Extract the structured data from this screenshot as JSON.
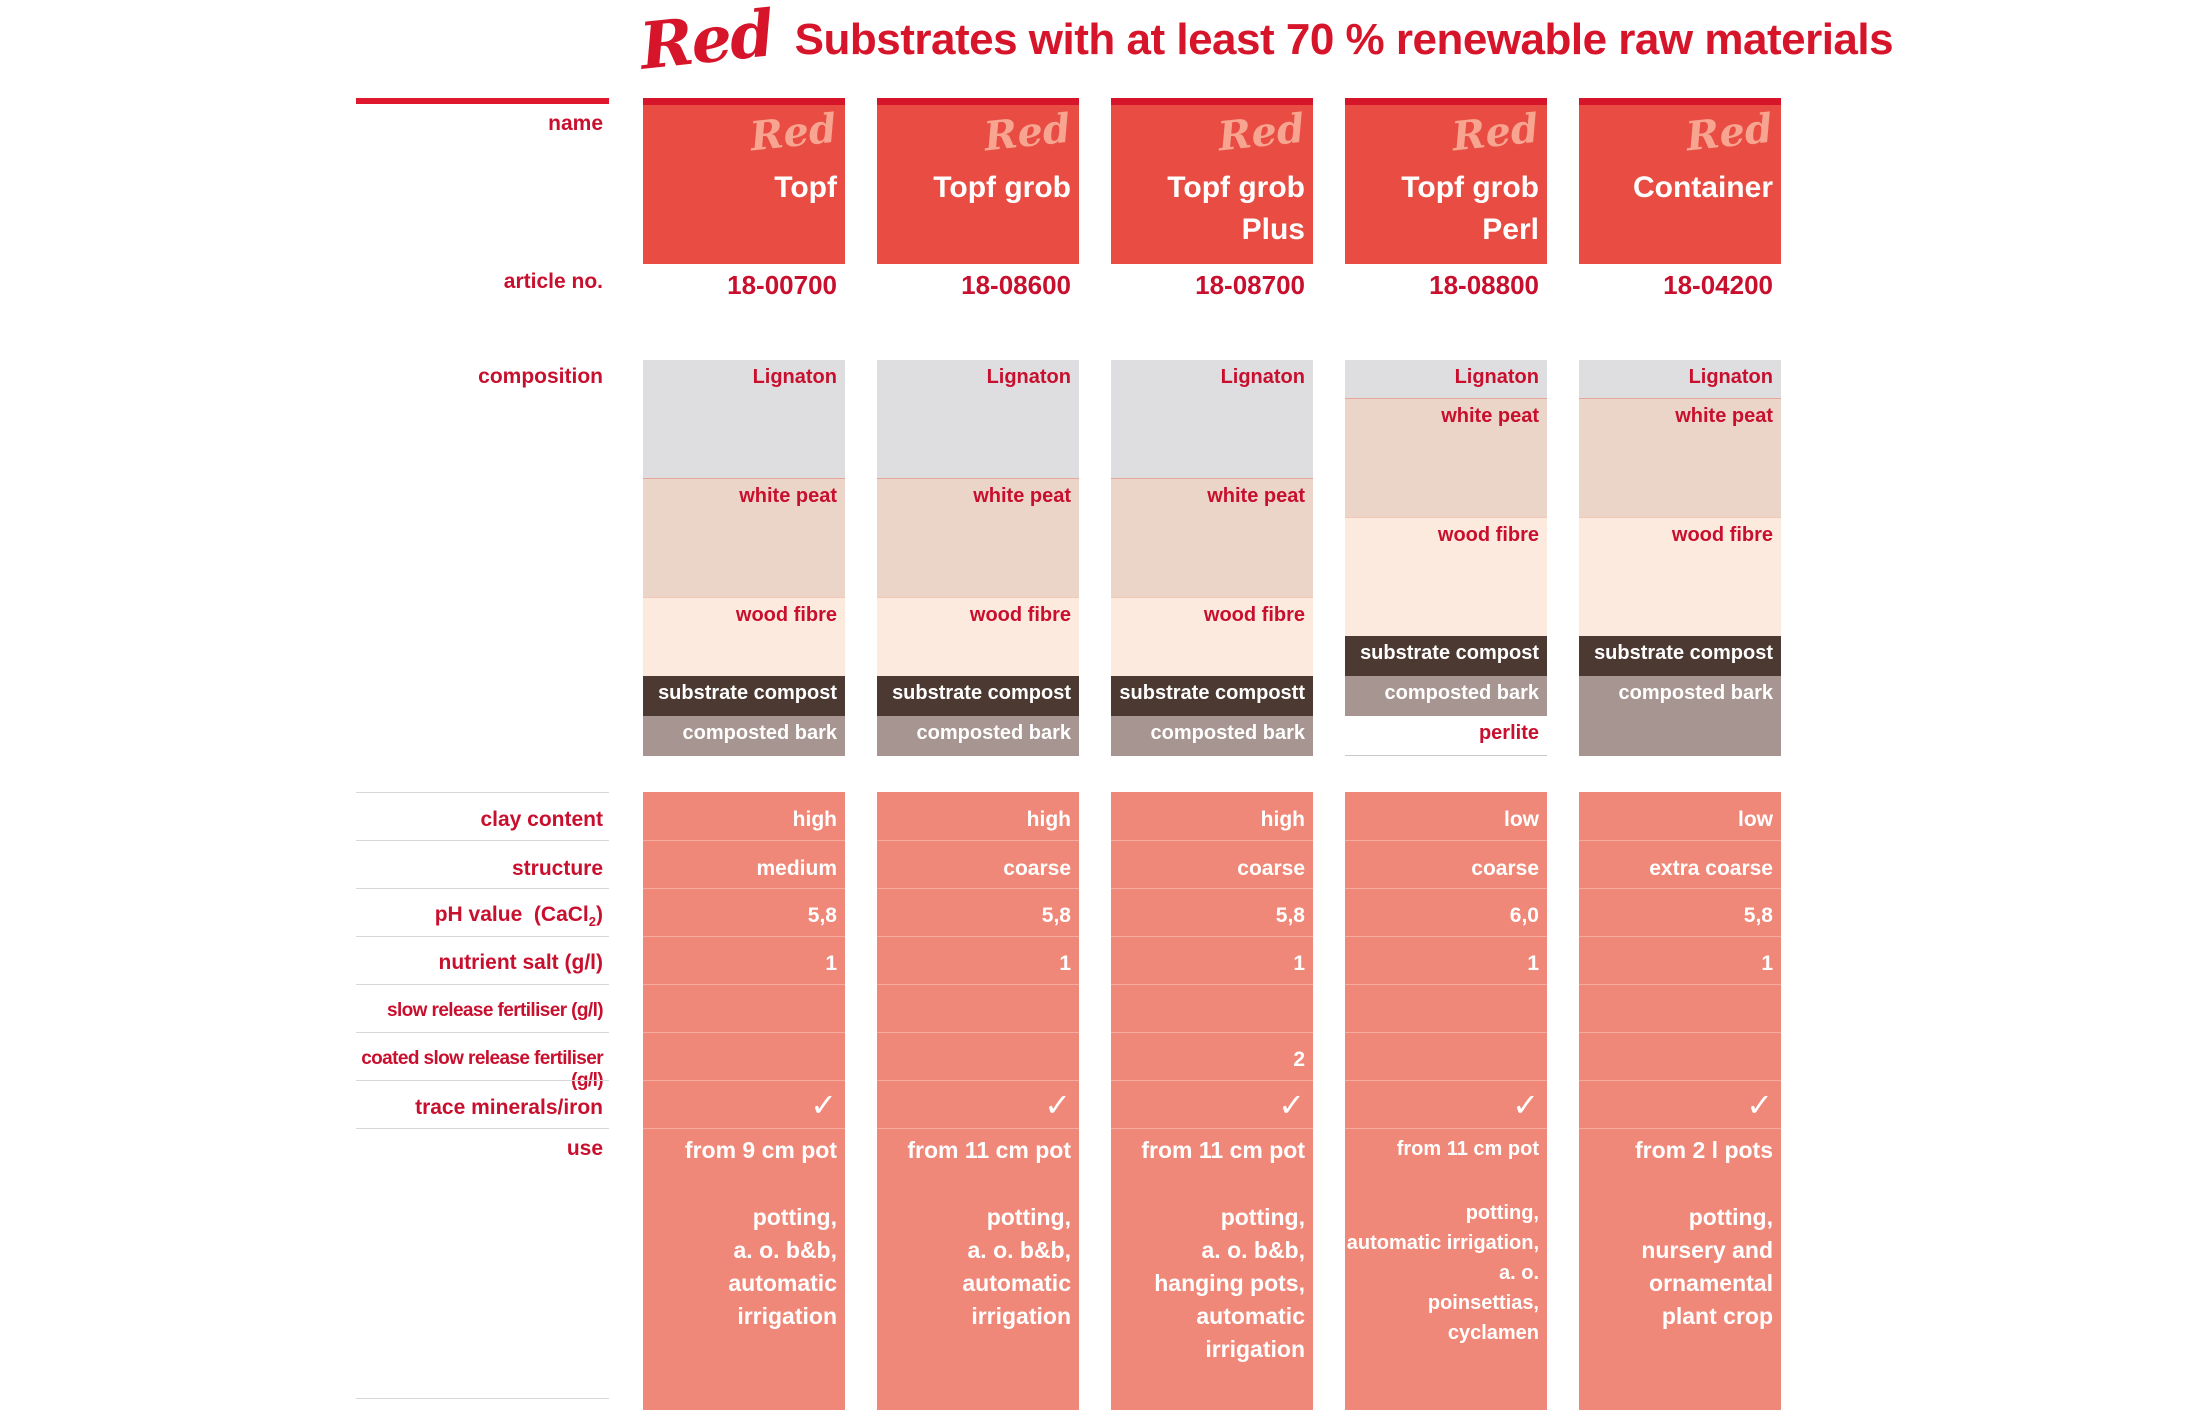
{
  "title": {
    "brand": "Red",
    "text": "Substrates with at least 70 % renewable raw materials"
  },
  "labels": {
    "name": "name",
    "article": "article no.",
    "composition": "composition",
    "clay": "clay content",
    "structure": "structure",
    "ph": "pH value",
    "ph_unit": "(CaCl",
    "ph_sub": "2",
    "ph_close": ")",
    "nutrient": "nutrient salt (g/l)",
    "slow": "slow release fertiliser (g/l)",
    "coated": "coated slow release fertiliser (g/l)",
    "trace": "trace minerals/iron",
    "use": "use"
  },
  "products": [
    {
      "logo": "Red",
      "name1": "Topf",
      "name2": "",
      "article": "18-00700",
      "composition": {
        "lignaton": "Lignaton",
        "peat": "white peat",
        "fibre": "wood fibre",
        "compost": "substrate compost",
        "bark": "composted bark",
        "perlite": ""
      },
      "clay": "high",
      "structure": "medium",
      "ph": "5,8",
      "nutrient": "1",
      "slow": "",
      "coated": "",
      "trace": "✓",
      "use1": "from 9 cm pot",
      "use2": "potting,",
      "use3": "a. o. b&b,",
      "use4": "automatic irrigation",
      "use5": "",
      "use6": ""
    },
    {
      "logo": "Red",
      "name1": "Topf grob",
      "name2": "",
      "article": "18-08600",
      "composition": {
        "lignaton": "Lignaton",
        "peat": "white peat",
        "fibre": "wood fibre",
        "compost": "substrate compost",
        "bark": "composted bark",
        "perlite": ""
      },
      "clay": "high",
      "structure": "coarse",
      "ph": "5,8",
      "nutrient": "1",
      "slow": "",
      "coated": "",
      "trace": "✓",
      "use1": "from 11 cm pot",
      "use2": "potting,",
      "use3": "a. o. b&b,",
      "use4": "automatic irrigation",
      "use5": "",
      "use6": ""
    },
    {
      "logo": "Red",
      "name1": "Topf grob",
      "name2": "Plus",
      "article": "18-08700",
      "composition": {
        "lignaton": "Lignaton",
        "peat": "white peat",
        "fibre": "wood fibre",
        "compost": "substrate compostt",
        "bark": "composted bark",
        "perlite": ""
      },
      "clay": "high",
      "structure": "coarse",
      "ph": "5,8",
      "nutrient": "1",
      "slow": "",
      "coated": "2",
      "trace": "✓",
      "use1": "from 11 cm pot",
      "use2": "potting,",
      "use3": "a. o. b&b,",
      "use4": "hanging pots,",
      "use5": "automatic irrigation",
      "use6": ""
    },
    {
      "logo": "Red",
      "name1": "Topf grob",
      "name2": "Perl",
      "article": "18-08800",
      "composition": {
        "lignaton": "Lignaton",
        "peat": "white peat",
        "fibre": "wood fibre",
        "compost": "substrate compost",
        "bark": "composted bark",
        "perlite": "perlite"
      },
      "clay": "low",
      "structure": "coarse",
      "ph": "6,0",
      "nutrient": "1",
      "slow": "",
      "coated": "",
      "trace": "✓",
      "use1": "from 11 cm pot",
      "use2": "potting,",
      "use3": "automatic irrigation,",
      "use4": "a. o.",
      "use5": "poinsettias,",
      "use6": "cyclamen"
    },
    {
      "logo": "Red",
      "name1": "Container",
      "name2": "",
      "article": "18-04200",
      "composition": {
        "lignaton": "Lignaton",
        "peat": "white peat",
        "fibre": "wood fibre",
        "compost": "substrate compost",
        "bark": "composted bark",
        "perlite": ""
      },
      "clay": "low",
      "structure": "extra coarse",
      "ph": "5,8",
      "nutrient": "1",
      "slow": "",
      "coated": "",
      "trace": "✓",
      "use1": "from 2 l pots",
      "use2": "potting,",
      "use3": "nursery and",
      "use4": "ornamental",
      "use5": "plant crop",
      "use6": ""
    }
  ]
}
